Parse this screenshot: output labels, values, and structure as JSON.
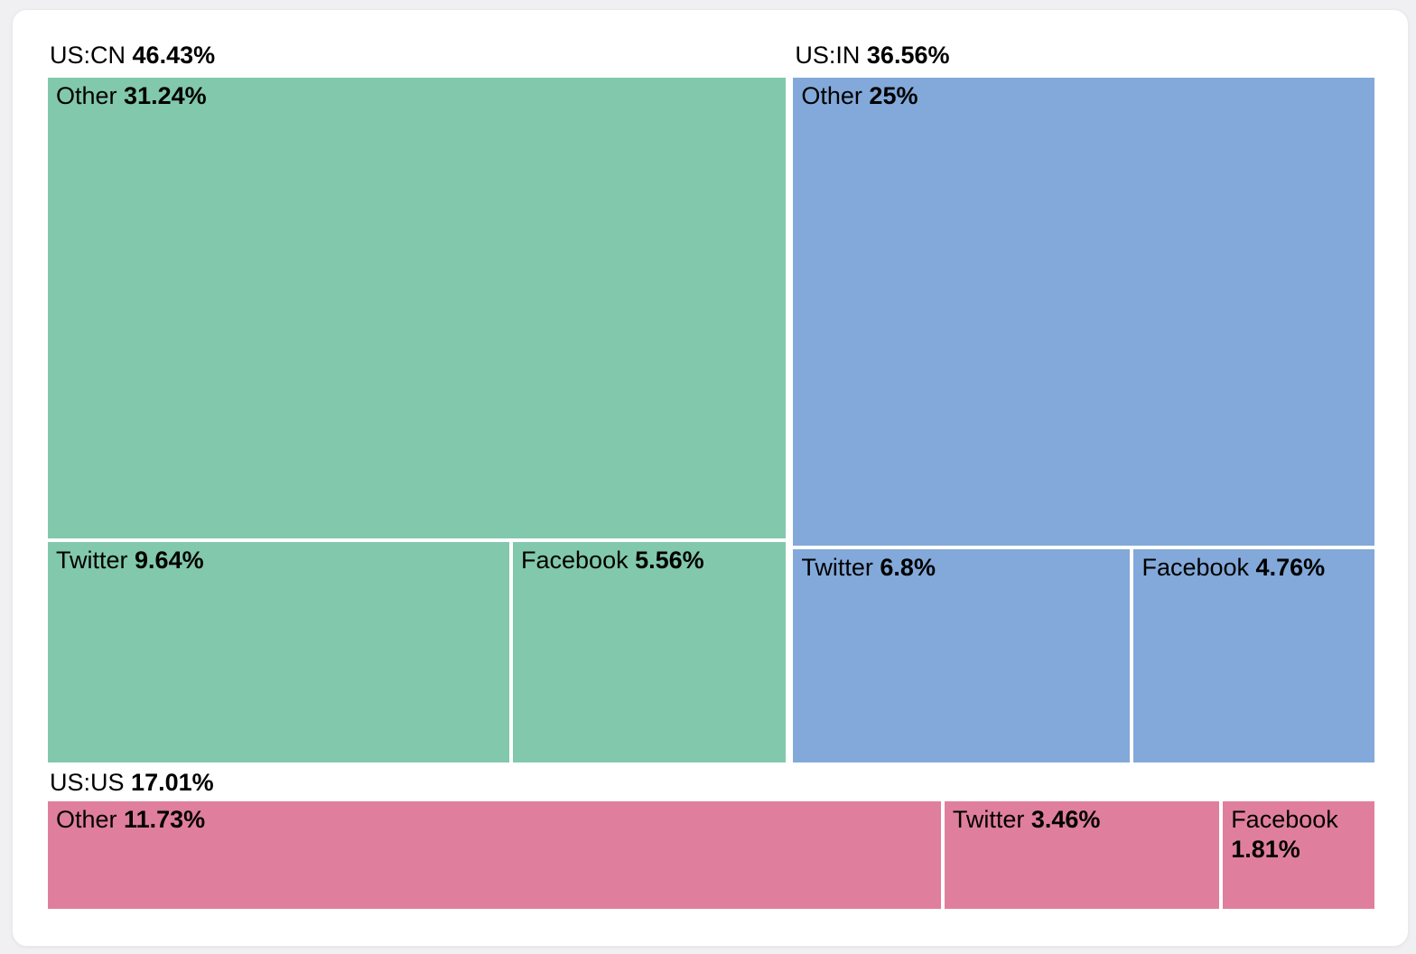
{
  "chart_data": {
    "type": "treemap",
    "title": "",
    "unit": "%",
    "legend": "none",
    "layout": "top row: two groups side by side; bottom row: one full-width group",
    "groups": [
      {
        "label": "US:CN",
        "value": 46.43,
        "value_label": "46.43%",
        "color": "#82C8AC",
        "subrow_value": 15.2,
        "children": [
          {
            "label": "Other",
            "value": 31.24,
            "value_label": "31.24%"
          },
          {
            "label": "Twitter",
            "value": 9.64,
            "value_label": "9.64%"
          },
          {
            "label": "Facebook",
            "value": 5.56,
            "value_label": "5.56%"
          }
        ]
      },
      {
        "label": "US:IN",
        "value": 36.56,
        "value_label": "36.56%",
        "color": "#82A9D9",
        "subrow_value": 11.56,
        "children": [
          {
            "label": "Other",
            "value": 25,
            "value_label": "25%"
          },
          {
            "label": "Twitter",
            "value": 6.8,
            "value_label": "6.8%"
          },
          {
            "label": "Facebook",
            "value": 4.76,
            "value_label": "4.76%"
          }
        ]
      },
      {
        "label": "US:US",
        "value": 17.01,
        "value_label": "17.01%",
        "color": "#E07F9D",
        "children": [
          {
            "label": "Other",
            "value": 11.73,
            "value_label": "11.73%"
          },
          {
            "label": "Twitter",
            "value": 3.46,
            "value_label": "3.46%"
          },
          {
            "label": "Facebook",
            "value": 1.81,
            "value_label": "1.81%"
          }
        ]
      }
    ],
    "text_color": "#000000",
    "card_background": "#ffffff",
    "page_background": "#f0f0f2"
  }
}
